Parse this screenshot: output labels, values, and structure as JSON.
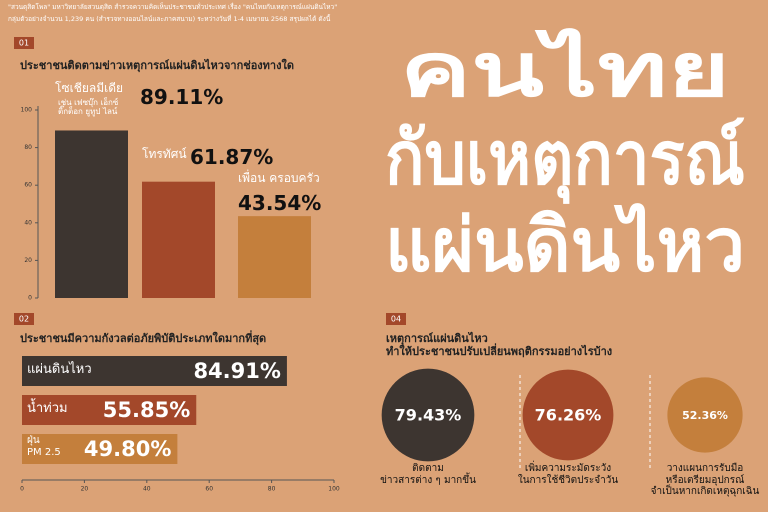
{
  "header": {
    "lines": [
      "\"สวนดุสิตโพล\" มหาวิทยาลัยสวนดุสิต สำรวจความคิดเห็นประชาชนทั่วประเทศ เรื่อง \"คนไทยกับเหตุการณ์แผ่นดินไหว\"",
      "กลุ่มตัวอย่างจำนวน 1,239 คน (สำรวจทางออนไลน์และภาคสนาม) ระหว่างวันที่ 1-4 เมษายน 2568 สรุปผลได้ ดังนี้"
    ]
  },
  "title": [
    "คนไทย",
    "กับเหตุการณ์",
    "แผ่นดินไหว"
  ],
  "chart_data": [
    {
      "type": "bar",
      "number": "01",
      "title": "ประชาชนติดตามข่าวเหตุการณ์แผ่นดินไหวจากช่องทางใด",
      "categories": [
        "โซเชียลมีเดีย",
        "โทรทัศน์",
        "เพื่อน ครอบครัว"
      ],
      "annotation": "เช่น เฟซบุ๊ก เอ็กซ์\nติ๊กต็อก ยูทูป ไลน์",
      "values": [
        89.11,
        61.87,
        43.54
      ],
      "value_labels": [
        "89.11%",
        "61.87%",
        "43.54%"
      ],
      "colors": [
        "#3d3530",
        "#a3482a",
        "#c47f3c"
      ],
      "ylim": [
        0,
        100
      ],
      "yticks": [
        0,
        20,
        40,
        60,
        80,
        100
      ]
    },
    {
      "type": "barh",
      "number": "02",
      "title": "ประชาชนมีความกังวลต่อภัยพิบัติประเภทใดมากที่สุด",
      "categories": [
        "แผ่นดินไหว",
        "น้ำท่วม",
        "ฝุ่น\nPM 2.5"
      ],
      "values": [
        84.91,
        55.85,
        49.8
      ],
      "value_labels": [
        "84.91%",
        "55.85%",
        "49.80%"
      ],
      "colors": [
        "#3d3530",
        "#a3482a",
        "#c47f3c"
      ],
      "xlim": [
        0,
        100
      ],
      "xticks": [
        0,
        20,
        40,
        60,
        80,
        100
      ]
    },
    {
      "type": "bubble",
      "number": "04",
      "title": "เหตุการณ์แผ่นดินไหว\nทำให้ประชาชนปรับเปลี่ยนพฤติกรรมอย่างไรบ้าง",
      "categories": [
        "ติดตาม\nข่าวสารต่าง ๆ มากขึ้น",
        "เพิ่มความระมัดระวัง\nในการใช้ชีวิตประจำวัน",
        "วางแผนการรับมือ\nหรือเตรียมอุปกรณ์\nจำเป็นหากเกิดเหตุฉุกเฉิน"
      ],
      "values": [
        79.43,
        76.26,
        52.36
      ],
      "value_labels": [
        "79.43%",
        "76.26%",
        "52.36%"
      ],
      "colors": [
        "#3d3530",
        "#a3482a",
        "#c47f3c"
      ]
    }
  ]
}
